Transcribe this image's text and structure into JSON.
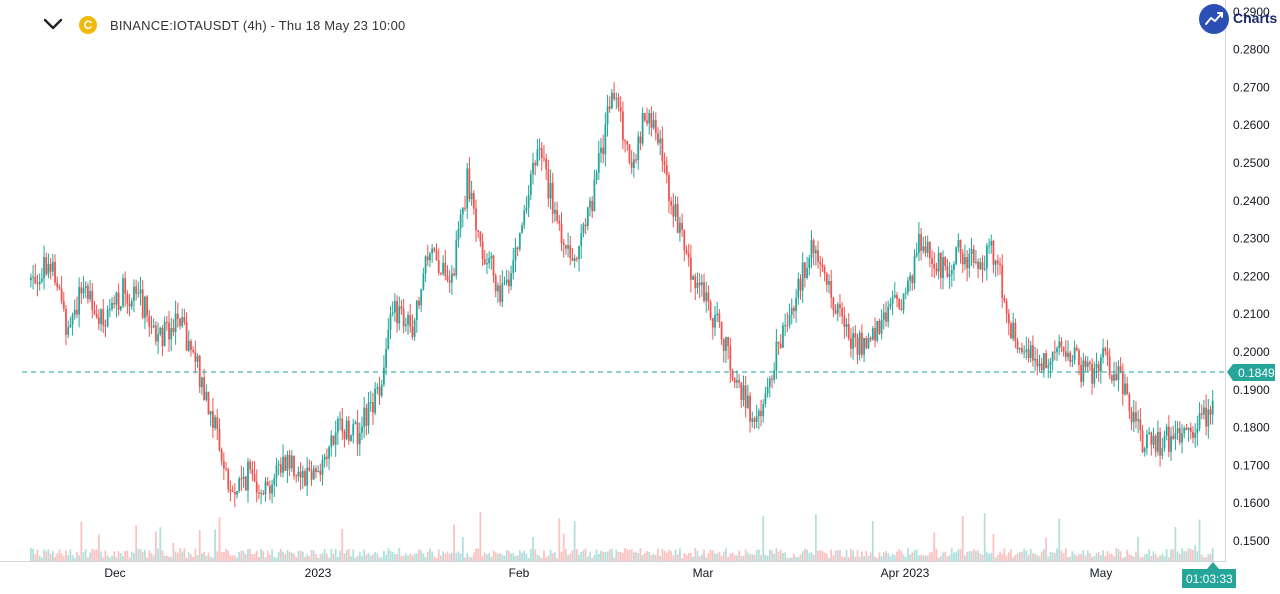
{
  "header": {
    "symbol_text": "BINANCE:IOTAUSDT (4h) - Thu 18 May 23 10:00",
    "coin_letter": "C",
    "logo_text": "Charts"
  },
  "colors": {
    "up": "#26a69a",
    "down": "#ef5350",
    "price_line": "#26a69a"
  },
  "chart_data": {
    "type": "candlestick",
    "symbol": "BINANCE:IOTAUSDT",
    "interval": "4h",
    "ylim": [
      0.145,
      0.29
    ],
    "y_ticks": [
      "0.1500",
      "0.1600",
      "0.1700",
      "0.1800",
      "0.1900",
      "0.2000",
      "0.2100",
      "0.2200",
      "0.2300",
      "0.2400",
      "0.2500",
      "0.2600",
      "0.2700",
      "0.2800",
      "0.2900"
    ],
    "x_ticks": [
      "Dec",
      "2023",
      "Feb",
      "Mar",
      "Apr 2023",
      "May"
    ],
    "last_price": "0.1849",
    "countdown": "01:03:33",
    "price_path": [
      {
        "t": "Nov 22",
        "p": 0.219
      },
      {
        "t": "Nov 24",
        "p": 0.225
      },
      {
        "t": "Nov 26",
        "p": 0.207
      },
      {
        "t": "Nov 28",
        "p": 0.218
      },
      {
        "t": "Dec 2",
        "p": 0.206
      },
      {
        "t": "Dec 5",
        "p": 0.216
      },
      {
        "t": "Dec 9",
        "p": 0.214
      },
      {
        "t": "Dec 12",
        "p": 0.204
      },
      {
        "t": "Dec 15",
        "p": 0.209
      },
      {
        "t": "Dec 17",
        "p": 0.198
      },
      {
        "t": "Dec 19",
        "p": 0.183
      },
      {
        "t": "Dec 21",
        "p": 0.162
      },
      {
        "t": "Dec 23",
        "p": 0.168
      },
      {
        "t": "Dec 25",
        "p": 0.164
      },
      {
        "t": "Dec 29",
        "p": 0.172
      },
      {
        "t": "Jan 1",
        "p": 0.168
      },
      {
        "t": "Jan 3",
        "p": 0.17
      },
      {
        "t": "Jan 6",
        "p": 0.18
      },
      {
        "t": "Jan 9",
        "p": 0.179
      },
      {
        "t": "Jan 12",
        "p": 0.188
      },
      {
        "t": "Jan 15",
        "p": 0.212
      },
      {
        "t": "Jan 17",
        "p": 0.204
      },
      {
        "t": "Jan 21",
        "p": 0.23
      },
      {
        "t": "Jan 23",
        "p": 0.215
      },
      {
        "t": "Jan 25",
        "p": 0.245
      },
      {
        "t": "Jan 28",
        "p": 0.225
      },
      {
        "t": "Jan 30",
        "p": 0.215
      },
      {
        "t": "Feb 1",
        "p": 0.235
      },
      {
        "t": "Feb 4",
        "p": 0.254
      },
      {
        "t": "Feb 7",
        "p": 0.232
      },
      {
        "t": "Feb 10",
        "p": 0.225
      },
      {
        "t": "Feb 13",
        "p": 0.243
      },
      {
        "t": "Feb 16",
        "p": 0.27
      },
      {
        "t": "Feb 18",
        "p": 0.25
      },
      {
        "t": "Feb 20",
        "p": 0.265
      },
      {
        "t": "Feb 23",
        "p": 0.245
      },
      {
        "t": "Feb 26",
        "p": 0.225
      },
      {
        "t": "Mar 1",
        "p": 0.215
      },
      {
        "t": "Mar 4",
        "p": 0.205
      },
      {
        "t": "Mar 6",
        "p": 0.19
      },
      {
        "t": "Mar 8",
        "p": 0.18
      },
      {
        "t": "Mar 10",
        "p": 0.2
      },
      {
        "t": "Mar 13",
        "p": 0.215
      },
      {
        "t": "Mar 16",
        "p": 0.228
      },
      {
        "t": "Mar 19",
        "p": 0.215
      },
      {
        "t": "Mar 21",
        "p": 0.205
      },
      {
        "t": "Mar 24",
        "p": 0.2
      },
      {
        "t": "Mar 27",
        "p": 0.21
      },
      {
        "t": "Apr 1",
        "p": 0.214
      },
      {
        "t": "Apr 4",
        "p": 0.23
      },
      {
        "t": "Apr 7",
        "p": 0.222
      },
      {
        "t": "Apr 10",
        "p": 0.226
      },
      {
        "t": "Apr 14",
        "p": 0.224
      },
      {
        "t": "Apr 17",
        "p": 0.226
      },
      {
        "t": "Apr 19",
        "p": 0.205
      },
      {
        "t": "Apr 22",
        "p": 0.199
      },
      {
        "t": "Apr 25",
        "p": 0.198
      },
      {
        "t": "Apr 28",
        "p": 0.202
      },
      {
        "t": "May 1",
        "p": 0.193
      },
      {
        "t": "May 3",
        "p": 0.198
      },
      {
        "t": "May 5",
        "p": 0.193
      },
      {
        "t": "May 8",
        "p": 0.177
      },
      {
        "t": "May 11",
        "p": 0.176
      },
      {
        "t": "May 14",
        "p": 0.178
      },
      {
        "t": "May 16",
        "p": 0.181
      },
      {
        "t": "May 18",
        "p": 0.1849
      }
    ]
  }
}
